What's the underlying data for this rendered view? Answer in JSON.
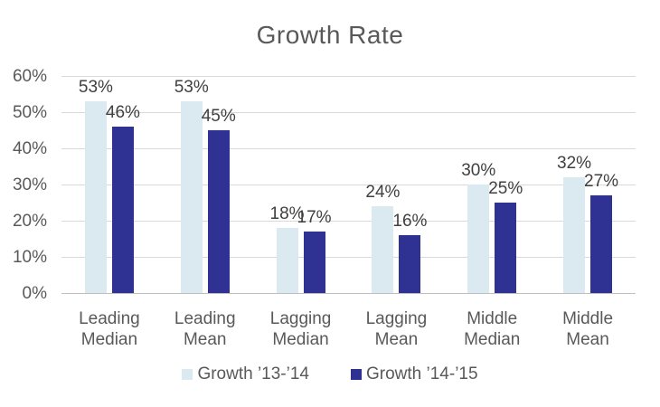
{
  "chart_data": {
    "type": "bar",
    "title": "Growth Rate",
    "categories": [
      "Leading Median",
      "Leading Mean",
      "Lagging Median",
      "Lagging Mean",
      "Middle Median",
      "Middle Mean"
    ],
    "series": [
      {
        "name": "Growth ’13-’14",
        "color": "#dbeaf0",
        "values": [
          53,
          53,
          18,
          24,
          30,
          32
        ],
        "labels": [
          "53%",
          "53%",
          "18%",
          "24%",
          "30%",
          "32%"
        ]
      },
      {
        "name": "Growth ’14-’15",
        "color": "#2f3292",
        "values": [
          46,
          45,
          17,
          16,
          25,
          27
        ],
        "labels": [
          "46%",
          "45%",
          "17%",
          "16%",
          "25%",
          "27%"
        ]
      }
    ],
    "y_axis": {
      "ticks": [
        {
          "label": "0%",
          "value": 0
        },
        {
          "label": "10%",
          "value": 10
        },
        {
          "label": "20%",
          "value": 20
        },
        {
          "label": "30%",
          "value": 30
        },
        {
          "label": "40%",
          "value": 40
        },
        {
          "label": "50%",
          "value": 50
        },
        {
          "label": "60%",
          "value": 60
        }
      ],
      "min": 0,
      "max": 60
    },
    "grid": true,
    "legend_position": "bottom",
    "colors": {
      "title_text": "#595959",
      "axis_text": "#595959",
      "data_label_text": "#404040",
      "gridline": "#d9d9d9",
      "axis_line": "#bfbfbf",
      "background": "#ffffff"
    }
  }
}
